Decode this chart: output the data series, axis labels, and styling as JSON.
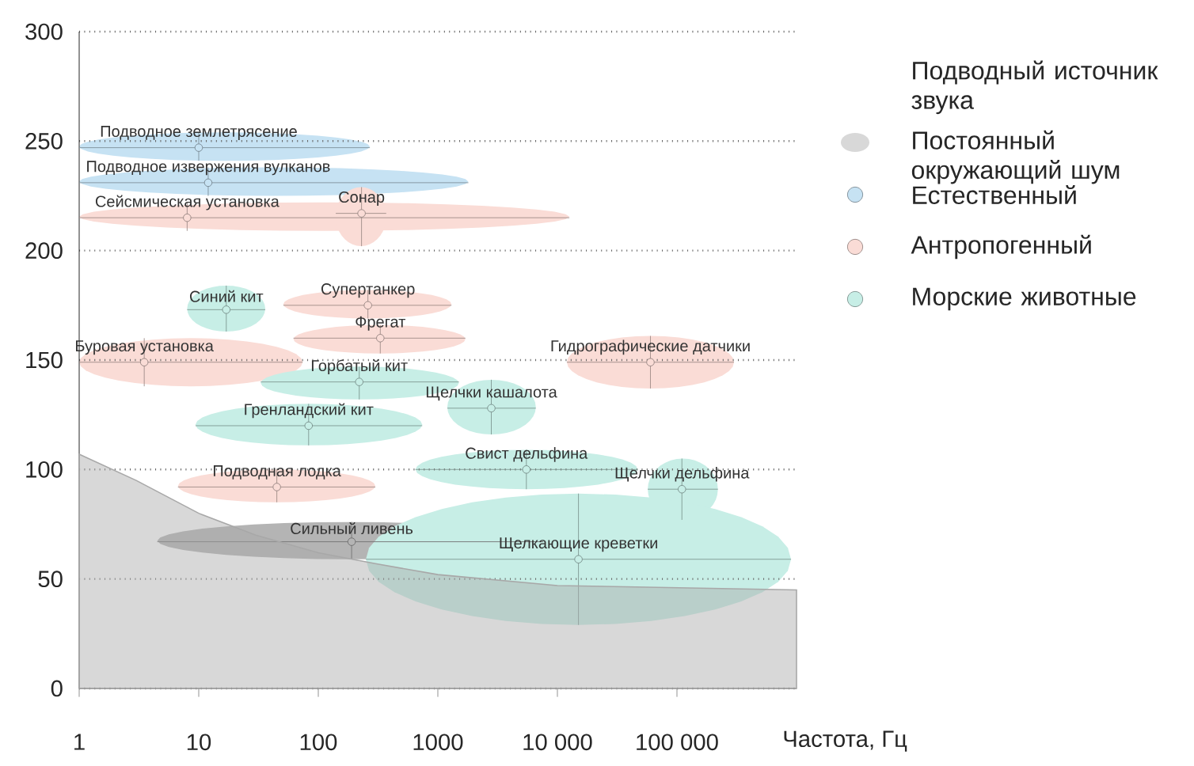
{
  "chart_data": {
    "type": "scatter",
    "legend_title": "Подводный источник звука",
    "xlabel": "Частота, Гц",
    "log": "x",
    "grid": "y",
    "legend": "right",
    "xlim": [
      1,
      1000000
    ],
    "ylim": [
      0,
      300
    ],
    "xticks": [
      1,
      10,
      100,
      1000,
      {
        "value": 10000,
        "label": "10 000"
      },
      {
        "value": 100000,
        "label": "100 000"
      }
    ],
    "yticks": [
      0,
      50,
      100,
      150,
      200,
      250,
      300
    ],
    "series": [
      {
        "name": "Постоянный окружающий шум",
        "type": "area",
        "color": "#a8a8a8",
        "x": [
          1,
          3,
          10,
          30,
          100,
          300,
          1000,
          10000,
          100000,
          1000000
        ],
        "values": [
          107,
          95,
          80,
          70,
          62,
          57,
          52,
          47,
          46,
          45
        ]
      },
      {
        "type": "scatter",
        "color": "#b4b4b4",
        "x": [
          190
        ],
        "values": [
          67
        ],
        "xerrors": [
          [
            4.5,
            7600
          ]
        ],
        "errors": [
          [
            59,
            76
          ]
        ]
      },
      {
        "name": "Естественный",
        "color": "#c6e2f3",
        "x": [
          10,
          12
        ],
        "values": [
          247,
          231
        ],
        "xerrors": [
          [
            1,
            270
          ],
          [
            1,
            1800
          ]
        ],
        "errors": [
          [
            241,
            254
          ],
          [
            225,
            238
          ]
        ]
      },
      {
        "name": "Антропогенный",
        "color": "#fadcd6",
        "x": [
          8,
          230,
          260,
          330,
          3.5,
          60000,
          45
        ],
        "values": [
          215,
          217,
          175,
          160,
          149,
          149,
          92
        ],
        "xerrors": [
          [
            1,
            12600
          ],
          [
            140,
            370
          ],
          [
            51,
            1300
          ],
          [
            62,
            1700
          ],
          [
            1,
            74
          ],
          [
            12000,
            300000
          ],
          [
            6.7,
            300
          ]
        ],
        "errors": [
          [
            209,
            222
          ],
          [
            202,
            229
          ],
          [
            169,
            182
          ],
          [
            153,
            166
          ],
          [
            138,
            160
          ],
          [
            137,
            161
          ],
          [
            85,
            100
          ]
        ]
      },
      {
        "name": "Морские животные",
        "color": "#c7eee6",
        "x": [
          17,
          220,
          83,
          2800,
          5500,
          110000,
          15000
        ],
        "values": [
          173,
          140,
          120,
          128,
          100,
          91,
          59
        ],
        "xerrors": [
          [
            8,
            36
          ],
          [
            33,
            1500
          ],
          [
            9.4,
            740
          ],
          [
            1200,
            6600
          ],
          [
            650,
            47000
          ],
          [
            57000,
            220000
          ],
          [
            250,
            900000
          ]
        ],
        "errors": [
          [
            163,
            184
          ],
          [
            132,
            147
          ],
          [
            111,
            130
          ],
          [
            116,
            141
          ],
          [
            91,
            109
          ],
          [
            77,
            105
          ],
          [
            29,
            89
          ]
        ]
      }
    ],
    "annotations": [
      {
        "text": "Подводное землетрясение",
        "x": 10,
        "y": 247
      },
      {
        "text": "Подводное извержения вулканов",
        "x": 12,
        "y": 231
      },
      {
        "text": "Сейсмическая установка",
        "x": 8,
        "y": 215
      },
      {
        "text": "Сонар",
        "x": 230,
        "y": 217
      },
      {
        "text": "Синий кит",
        "x": 17,
        "y": 173
      },
      {
        "text": "Супертанкер",
        "x": 260,
        "y": 175
      },
      {
        "text": "Фрегат",
        "x": 330,
        "y": 160
      },
      {
        "text": "Буровая установка",
        "x": 3.5,
        "y": 149
      },
      {
        "text": "Горбатый кит",
        "x": 220,
        "y": 140
      },
      {
        "text": "Гидрографические датчики",
        "x": 60000,
        "y": 149
      },
      {
        "text": "Гренландский кит",
        "x": 83,
        "y": 120
      },
      {
        "text": "Щелчки кашалота",
        "x": 2800,
        "y": 128
      },
      {
        "text": "Свист дельфина",
        "x": 5500,
        "y": 100
      },
      {
        "text": "Щелчки дельфина",
        "x": 110000,
        "y": 91
      },
      {
        "text": "Подводная лодка",
        "x": 45,
        "y": 92
      },
      {
        "text": "Сильный ливень",
        "x": 190,
        "y": 67
      },
      {
        "text": "Щелкающие креветки",
        "x": 15000,
        "y": 59
      }
    ]
  }
}
